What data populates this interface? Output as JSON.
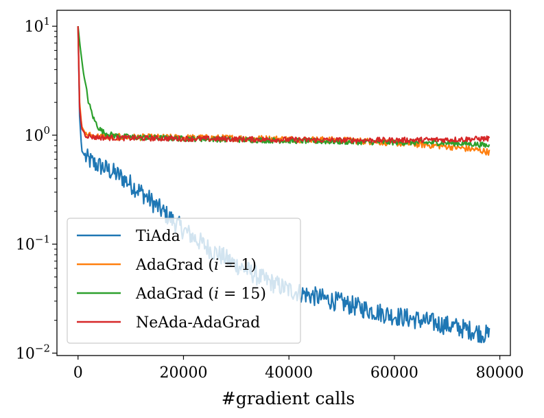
{
  "chart_data": {
    "type": "line",
    "xlabel": "#gradient calls",
    "ylabel": "",
    "x_scale": "linear",
    "y_scale": "log",
    "xlim": [
      -4000,
      82000
    ],
    "ylim": [
      0.0095,
      14
    ],
    "x_ticks": [
      {
        "value": 0,
        "label": "0"
      },
      {
        "value": 20000,
        "label": "20000"
      },
      {
        "value": 40000,
        "label": "40000"
      },
      {
        "value": 60000,
        "label": "60000"
      },
      {
        "value": 80000,
        "label": "80000"
      }
    ],
    "y_ticks": [
      {
        "value": 10,
        "base": "10",
        "exp": "1"
      },
      {
        "value": 1,
        "base": "10",
        "exp": "0"
      },
      {
        "value": 0.1,
        "base": "10",
        "exp": "−1"
      },
      {
        "value": 0.01,
        "base": "10",
        "exp": "−2"
      }
    ],
    "grid": false,
    "legend_position": "lower-left",
    "series": [
      {
        "name": "TiAda",
        "color": "#1f77b4",
        "noise": 0.09,
        "x": [
          0,
          300,
          700,
          1500,
          3000,
          5000,
          8000,
          12000,
          16000,
          20000,
          25000,
          30000,
          35000,
          40000,
          45000,
          50000,
          55000,
          60000,
          65000,
          70000,
          75000,
          78000
        ],
        "y": [
          10,
          1.5,
          0.72,
          0.62,
          0.55,
          0.5,
          0.42,
          0.3,
          0.2,
          0.135,
          0.09,
          0.065,
          0.048,
          0.038,
          0.033,
          0.029,
          0.025,
          0.022,
          0.02,
          0.018,
          0.016,
          0.0145
        ]
      },
      {
        "name": "AdaGrad (i = 1)",
        "color": "#ff7f0e",
        "noise": 0.03,
        "x": [
          0,
          300,
          700,
          1500,
          3000,
          5000,
          10000,
          20000,
          30000,
          40000,
          50000,
          55000,
          60000,
          65000,
          70000,
          75000,
          78000
        ],
        "y": [
          10,
          2.0,
          1.2,
          1.02,
          0.98,
          0.97,
          0.96,
          0.95,
          0.94,
          0.92,
          0.9,
          0.88,
          0.85,
          0.82,
          0.79,
          0.74,
          0.7
        ]
      },
      {
        "name": "AdaGrad (i = 15)",
        "color": "#2ca02c",
        "noise": 0.025,
        "x": [
          0,
          400,
          1000,
          2000,
          3000,
          4000,
          5000,
          7000,
          10000,
          20000,
          30000,
          40000,
          50000,
          60000,
          70000,
          75000,
          78000
        ],
        "y": [
          10,
          6.5,
          3.8,
          2.0,
          1.4,
          1.15,
          1.05,
          0.99,
          0.96,
          0.93,
          0.91,
          0.89,
          0.87,
          0.86,
          0.85,
          0.83,
          0.8
        ]
      },
      {
        "name": "NeAda-AdaGrad",
        "color": "#d62728",
        "noise": 0.025,
        "x": [
          0,
          300,
          700,
          1500,
          3000,
          5000,
          10000,
          20000,
          30000,
          40000,
          50000,
          60000,
          70000,
          78000
        ],
        "y": [
          10,
          1.8,
          1.15,
          1.0,
          0.96,
          0.95,
          0.94,
          0.93,
          0.92,
          0.91,
          0.9,
          0.9,
          0.91,
          0.93
        ]
      }
    ],
    "legend": [
      {
        "text": "TiAda",
        "color": "#1f77b4"
      },
      {
        "prefix": "AdaGrad (",
        "italic": "i",
        "suffix": " = 1)",
        "color": "#ff7f0e"
      },
      {
        "prefix": "AdaGrad (",
        "italic": "i",
        "suffix": " = 15)",
        "color": "#2ca02c"
      },
      {
        "text": "NeAda-AdaGrad",
        "color": "#d62728"
      }
    ]
  }
}
